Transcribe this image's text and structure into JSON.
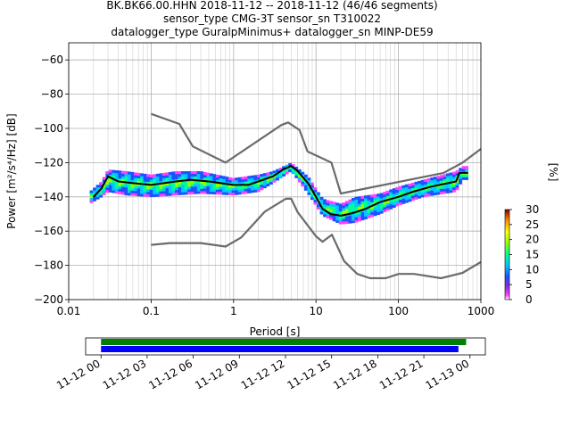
{
  "title": {
    "line1": "BK.BK66.00.HHN   2018-11-12 -- 2018-11-12  (46/46 segments)",
    "line2": "sensor_type CMG-3T sensor_sn T310022",
    "line3": "datalogger_type GuralpMinimus+ datalogger_sn MINP-DE59"
  },
  "colors": {
    "mean_line": "#000000",
    "model_lines": "#6b6b6b",
    "coverage_top": "#008000",
    "coverage_bottom": "#0000ff"
  },
  "chart_data": [
    {
      "type": "line",
      "kind": "probabilistic-psd",
      "xlabel": "Period [s]",
      "ylabel": "Power [m²/s⁴/Hz] [dB]",
      "xscale": "log",
      "xlim": [
        0.01,
        1000
      ],
      "ylim": [
        -200,
        -50
      ],
      "grid": true,
      "x_ticks": [
        {
          "v": 0.01,
          "label": "0.01"
        },
        {
          "v": 0.1,
          "label": "0.1"
        },
        {
          "v": 1,
          "label": "1"
        },
        {
          "v": 10,
          "label": "10"
        },
        {
          "v": 100,
          "label": "100"
        },
        {
          "v": 1000,
          "label": "1000"
        }
      ],
      "y_ticks": [
        {
          "v": -60,
          "label": "−60"
        },
        {
          "v": -80,
          "label": "−80"
        },
        {
          "v": -100,
          "label": "−100"
        },
        {
          "v": -120,
          "label": "−120"
        },
        {
          "v": -140,
          "label": "−140"
        },
        {
          "v": -160,
          "label": "−160"
        },
        {
          "v": -180,
          "label": "−180"
        },
        {
          "v": -200,
          "label": "−200"
        }
      ],
      "series": [
        {
          "role": "mean",
          "color": "#000000",
          "points": [
            [
              0.02,
              -140
            ],
            [
              0.025,
              -135
            ],
            [
              0.03,
              -128
            ],
            [
              0.04,
              -131
            ],
            [
              0.06,
              -132
            ],
            [
              0.1,
              -133
            ],
            [
              0.2,
              -131
            ],
            [
              0.3,
              -130
            ],
            [
              0.5,
              -131
            ],
            [
              1,
              -133
            ],
            [
              1.5,
              -133
            ],
            [
              2,
              -131
            ],
            [
              3,
              -128
            ],
            [
              4,
              -124
            ],
            [
              5,
              -122
            ],
            [
              6,
              -125
            ],
            [
              8,
              -132
            ],
            [
              10,
              -140
            ],
            [
              12,
              -147
            ],
            [
              15,
              -150
            ],
            [
              20,
              -151
            ],
            [
              25,
              -150
            ],
            [
              30,
              -149
            ],
            [
              40,
              -147
            ],
            [
              60,
              -143
            ],
            [
              100,
              -140
            ],
            [
              150,
              -137
            ],
            [
              250,
              -134
            ],
            [
              400,
              -132
            ],
            [
              500,
              -131
            ],
            [
              550,
              -126
            ],
            [
              700,
              -126
            ]
          ]
        },
        {
          "role": "high_noise_model",
          "color": "#6b6b6b",
          "points": [
            [
              0.1,
              -91.5
            ],
            [
              0.22,
              -97.4
            ],
            [
              0.32,
              -110.5
            ],
            [
              0.8,
              -120
            ],
            [
              3.8,
              -98
            ],
            [
              4.6,
              -96.5
            ],
            [
              6.3,
              -101
            ],
            [
              7.9,
              -113.5
            ],
            [
              15.4,
              -120
            ],
            [
              20,
              -138
            ],
            [
              354,
              -126
            ],
            [
              600,
              -120
            ],
            [
              1000,
              -112
            ]
          ]
        },
        {
          "role": "low_noise_model",
          "color": "#6b6b6b",
          "points": [
            [
              0.1,
              -168
            ],
            [
              0.17,
              -167
            ],
            [
              0.4,
              -167
            ],
            [
              0.8,
              -169
            ],
            [
              1.24,
              -163.7
            ],
            [
              2.4,
              -148.6
            ],
            [
              4.3,
              -141.1
            ],
            [
              5,
              -141.1
            ],
            [
              6,
              -149
            ],
            [
              10,
              -163
            ],
            [
              12,
              -166.2
            ],
            [
              15.6,
              -162.1
            ],
            [
              21.9,
              -177.5
            ],
            [
              31.6,
              -185
            ],
            [
              45,
              -187.5
            ],
            [
              70,
              -187.5
            ],
            [
              101,
              -185
            ],
            [
              154,
              -185
            ],
            [
              328,
              -187.5
            ],
            [
              600,
              -184.4
            ],
            [
              1000,
              -178
            ]
          ]
        }
      ],
      "density_band": [
        {
          "x": 0.018,
          "lo": -144,
          "hi": -137
        },
        {
          "x": 0.025,
          "lo": -140,
          "hi": -131
        },
        {
          "x": 0.03,
          "lo": -137,
          "hi": -124
        },
        {
          "x": 0.05,
          "lo": -139,
          "hi": -125
        },
        {
          "x": 0.1,
          "lo": -140,
          "hi": -127
        },
        {
          "x": 0.2,
          "lo": -139,
          "hi": -125
        },
        {
          "x": 0.4,
          "lo": -138,
          "hi": -125
        },
        {
          "x": 1,
          "lo": -139,
          "hi": -129
        },
        {
          "x": 2,
          "lo": -137,
          "hi": -127
        },
        {
          "x": 3,
          "lo": -132,
          "hi": -125
        },
        {
          "x": 5,
          "lo": -125,
          "hi": -120
        },
        {
          "x": 8,
          "lo": -138,
          "hi": -128
        },
        {
          "x": 12,
          "lo": -151,
          "hi": -141
        },
        {
          "x": 20,
          "lo": -156,
          "hi": -144
        },
        {
          "x": 30,
          "lo": -155,
          "hi": -140
        },
        {
          "x": 60,
          "lo": -150,
          "hi": -138
        },
        {
          "x": 100,
          "lo": -145,
          "hi": -134
        },
        {
          "x": 200,
          "lo": -140,
          "hi": -130
        },
        {
          "x": 500,
          "lo": -137,
          "hi": -125
        },
        {
          "x": 600,
          "lo": -130,
          "hi": -122
        },
        {
          "x": 700,
          "lo": -130,
          "hi": -122
        }
      ],
      "colorbar": {
        "label": "[%]",
        "range": [
          0,
          30
        ],
        "ticks": [
          {
            "v": 0,
            "label": "0"
          },
          {
            "v": 5,
            "label": "5"
          },
          {
            "v": 10,
            "label": "10"
          },
          {
            "v": 15,
            "label": "15"
          },
          {
            "v": 20,
            "label": "20"
          },
          {
            "v": 25,
            "label": "25"
          },
          {
            "v": 30,
            "label": "30"
          }
        ]
      }
    },
    {
      "type": "bar",
      "kind": "data-coverage",
      "xlim_hours": [
        -1,
        25
      ],
      "bars": [
        {
          "name": "top",
          "start_h": 0,
          "end_h": 23.75,
          "color": "#008000"
        },
        {
          "name": "bottom",
          "start_h": 0,
          "end_h": 23.25,
          "color": "#0000ff"
        }
      ],
      "ticks": [
        {
          "h": 0,
          "label": "11-12 00"
        },
        {
          "h": 3,
          "label": "11-12 03"
        },
        {
          "h": 6,
          "label": "11-12 06"
        },
        {
          "h": 9,
          "label": "11-12 09"
        },
        {
          "h": 12,
          "label": "11-12 12"
        },
        {
          "h": 15,
          "label": "11-12 15"
        },
        {
          "h": 18,
          "label": "11-12 18"
        },
        {
          "h": 21,
          "label": "11-12 21"
        },
        {
          "h": 24,
          "label": "11-13 00"
        }
      ]
    }
  ]
}
